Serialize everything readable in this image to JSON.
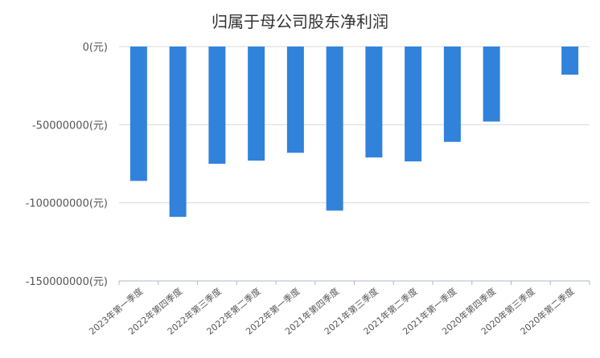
{
  "chart_data": {
    "type": "bar",
    "title": "归属于母公司股东净利润",
    "xlabel": "",
    "ylabel": "",
    "categories": [
      "2023年第一季度",
      "2022年第四季度",
      "2022年第三季度",
      "2022年第二季度",
      "2022年第一季度",
      "2021年第四季度",
      "2021年第三季度",
      "2021年第二季度",
      "2021年第一季度",
      "2020年第四季度",
      "2020年第三季度",
      "2020年第二季度"
    ],
    "values": [
      -86000000,
      -109000000,
      -75000000,
      -73000000,
      -68000000,
      -105000000,
      -71000000,
      -73500000,
      -61000000,
      -48000000,
      0,
      -18000000
    ],
    "ylim": [
      -150000000,
      0
    ],
    "yticks": [
      0,
      -50000000,
      -100000000,
      -150000000
    ],
    "ytick_labels": [
      "0(元)",
      "-50000000(元)",
      "-100000000(元)",
      "-150000000(元)"
    ],
    "grid": true,
    "legend": "none",
    "colors": {
      "bar": "#3182DB",
      "grid": "#D9D9D9",
      "axis": "#AAB8C8"
    }
  }
}
